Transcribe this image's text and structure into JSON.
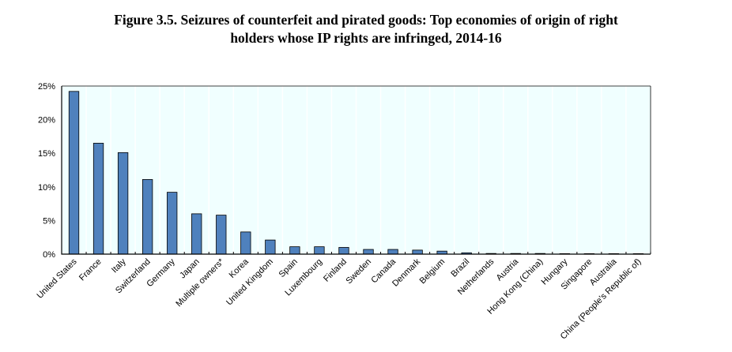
{
  "chart_data": {
    "type": "bar",
    "title_line1": "Figure 3.5. Seizures of counterfeit and pirated goods: Top economies of origin of right",
    "title_line2": "holders whose IP rights are infringed, 2014-16",
    "xlabel": "",
    "ylabel": "",
    "ylim": [
      0,
      25
    ],
    "yticks": [
      "0%",
      "5%",
      "10%",
      "15%",
      "20%",
      "25%"
    ],
    "categories": [
      "United States",
      "France",
      "Italy",
      "Switzerland",
      "Germany",
      "Japan",
      "Multiple owners*",
      "Korea",
      "United Kingdom",
      "Spain",
      "Luxembourg",
      "Finland",
      "Sweden",
      "Canada",
      "Denmark",
      "Belgium",
      "Brazil",
      "Netherlands",
      "Austria",
      "Hong Kong (China)",
      "Hungary",
      "Singapore",
      "Australia",
      "China (People's Republic of)"
    ],
    "values": [
      24.2,
      16.5,
      15.1,
      11.1,
      9.2,
      6.0,
      5.8,
      3.3,
      2.1,
      1.1,
      1.1,
      1.0,
      0.7,
      0.7,
      0.6,
      0.45,
      0.2,
      0.1,
      0.1,
      0.1,
      0.03,
      0.02,
      0.01,
      0.01
    ],
    "colors": {
      "bar": "#4f81bd",
      "plot_bg": "#f0ffff"
    }
  }
}
